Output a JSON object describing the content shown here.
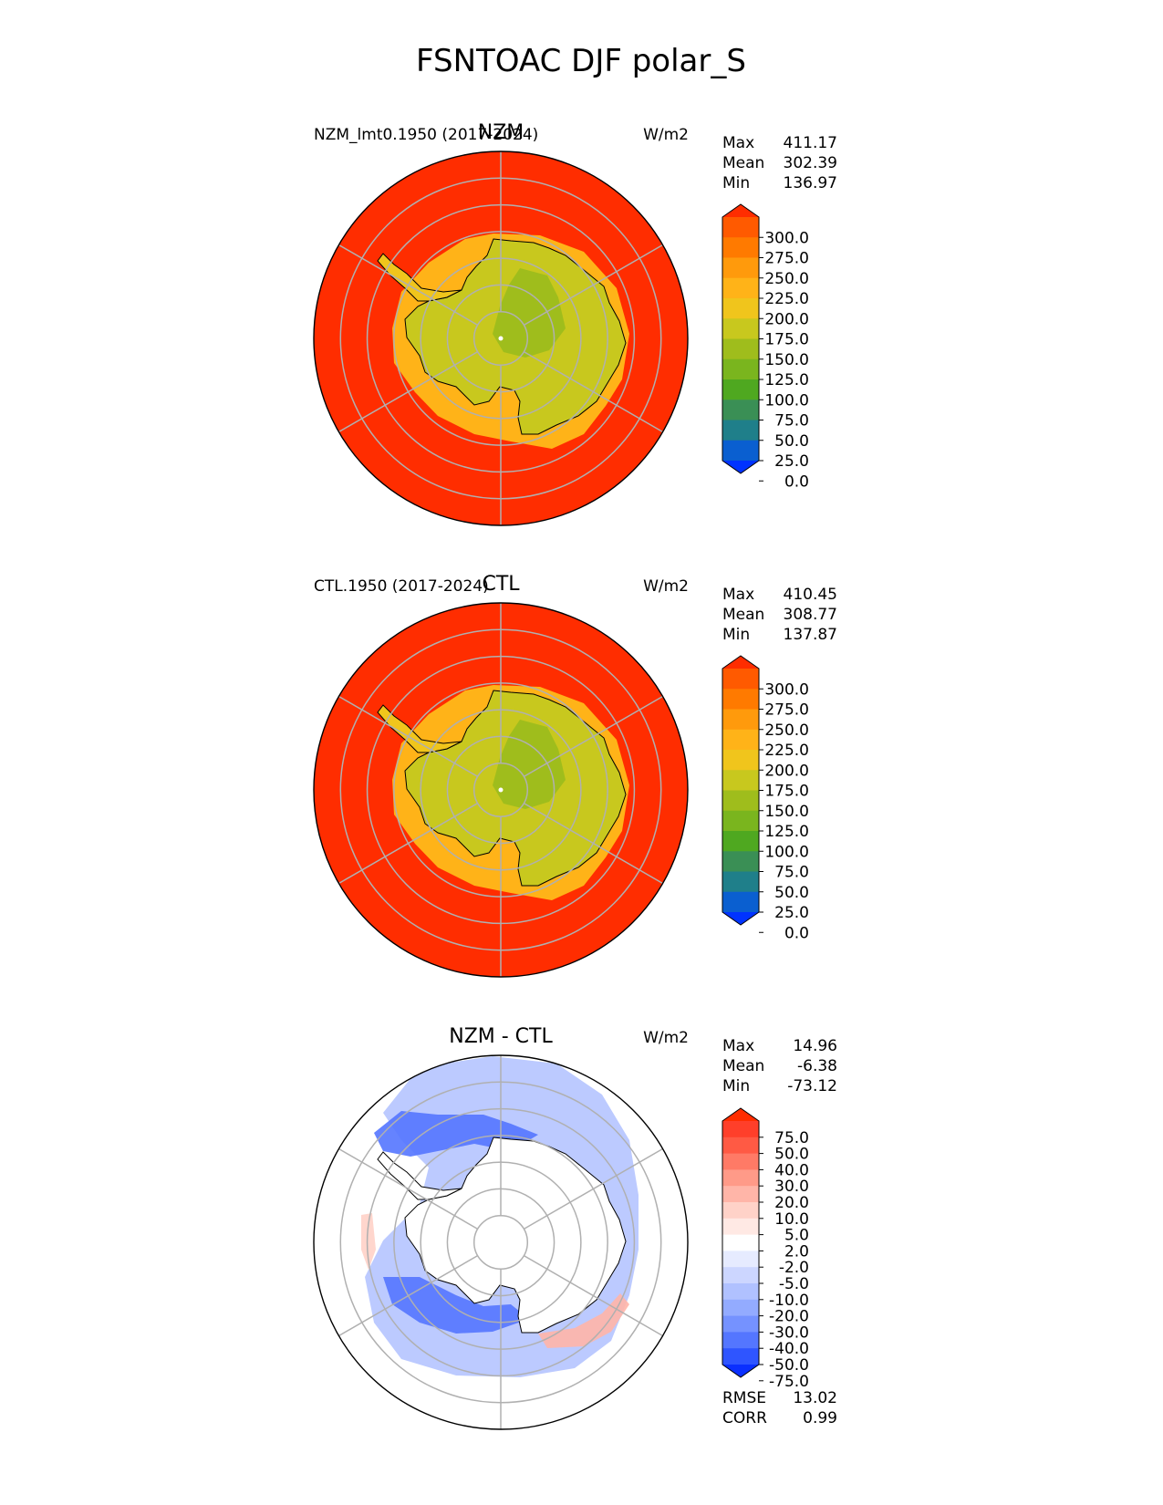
{
  "title": "FSNTOAC DJF polar_S",
  "colors": {
    "ocean_red": "#ff2d00",
    "ice": "#c8c81e",
    "ice_inner": "#9fbd1c",
    "grid": "#b0b0b0",
    "coast": "#000000"
  },
  "chart_data": [
    {
      "type": "heatmap",
      "projection": "south-polar-stereographic",
      "title": "NZM",
      "subtitle": "NZM_lmt0.1950 (2017-2024)",
      "units": "W/m2",
      "stats": [
        {
          "label": "Max",
          "value": "411.17"
        },
        {
          "label": "Mean",
          "value": "302.39"
        },
        {
          "label": "Min",
          "value": "136.97"
        }
      ],
      "colorbar": {
        "ticks": [
          "300.0",
          "275.0",
          "250.0",
          "225.0",
          "200.0",
          "175.0",
          "150.0",
          "125.0",
          "100.0",
          "75.0",
          "50.0",
          "25.0",
          "0.0"
        ],
        "colors": [
          "#ff2d00",
          "#ff5a00",
          "#ff7a00",
          "#ff9a0c",
          "#ffb318",
          "#f0c51c",
          "#c8c81e",
          "#9fbd1c",
          "#7ab51e",
          "#4fa820",
          "#3a8f55",
          "#1f7f8a",
          "#0a5fd0",
          "#0033ff"
        ],
        "extend": "both"
      }
    },
    {
      "type": "heatmap",
      "projection": "south-polar-stereographic",
      "title": "CTL",
      "subtitle": "CTL.1950 (2017-2024)",
      "units": "W/m2",
      "stats": [
        {
          "label": "Max",
          "value": "410.45"
        },
        {
          "label": "Mean",
          "value": "308.77"
        },
        {
          "label": "Min",
          "value": "137.87"
        }
      ],
      "colorbar": {
        "ticks": [
          "300.0",
          "275.0",
          "250.0",
          "225.0",
          "200.0",
          "175.0",
          "150.0",
          "125.0",
          "100.0",
          "75.0",
          "50.0",
          "25.0",
          "0.0"
        ],
        "colors": [
          "#ff2d00",
          "#ff5a00",
          "#ff7a00",
          "#ff9a0c",
          "#ffb318",
          "#f0c51c",
          "#c8c81e",
          "#9fbd1c",
          "#7ab51e",
          "#4fa820",
          "#3a8f55",
          "#1f7f8a",
          "#0a5fd0",
          "#0033ff"
        ],
        "extend": "both"
      }
    },
    {
      "type": "heatmap",
      "projection": "south-polar-stereographic",
      "title": "NZM - CTL",
      "subtitle": "",
      "units": "W/m2",
      "stats": [
        {
          "label": "Max",
          "value": "14.96"
        },
        {
          "label": "Mean",
          "value": "-6.38"
        },
        {
          "label": "Min",
          "value": "-73.12"
        }
      ],
      "colorbar": {
        "ticks": [
          "75.0",
          "50.0",
          "40.0",
          "30.0",
          "20.0",
          "10.0",
          "5.0",
          "2.0",
          "-2.0",
          "-5.0",
          "-10.0",
          "-20.0",
          "-30.0",
          "-40.0",
          "-50.0",
          "-75.0"
        ],
        "colors": [
          "#ff2d00",
          "#ff3f2a",
          "#ff5a44",
          "#ff7a66",
          "#ff9a88",
          "#ffb5a8",
          "#ffd2c8",
          "#ffe9e4",
          "#ffffff",
          "#e6ebff",
          "#ccd6ff",
          "#b0c1ff",
          "#93abff",
          "#7592ff",
          "#5476ff",
          "#2f55ff",
          "#0a2fff"
        ],
        "extend": "both"
      },
      "footer_stats": [
        {
          "label": "RMSE",
          "value": "13.02"
        },
        {
          "label": "CORR",
          "value": "0.99"
        }
      ]
    }
  ]
}
